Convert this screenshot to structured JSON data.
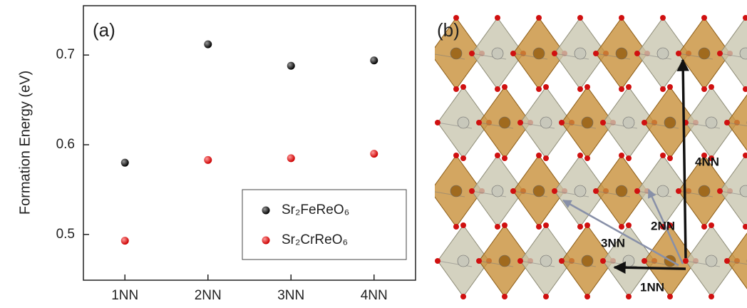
{
  "chart_data": {
    "type": "scatter",
    "panel_label": "(a)",
    "y_label": "Formation Energy (eV)",
    "categories": [
      "1NN",
      "2NN",
      "3NN",
      "4NN"
    ],
    "series": [
      {
        "name": "Sr₂FeReO₆",
        "color": "#111111",
        "values": [
          0.58,
          0.712,
          0.688,
          0.694
        ]
      },
      {
        "name": "Sr₂CrReO₆",
        "color": "#e01010",
        "values": [
          0.493,
          0.583,
          0.585,
          0.59
        ]
      }
    ],
    "ylim": [
      0.449,
      0.755
    ],
    "yticks": [
      0.5,
      0.6,
      0.7
    ],
    "legend": "lower-right"
  },
  "structure": {
    "panel_label": "(b)",
    "annotations": [
      "4NN",
      "2NN",
      "3NN",
      "1NN"
    ]
  }
}
